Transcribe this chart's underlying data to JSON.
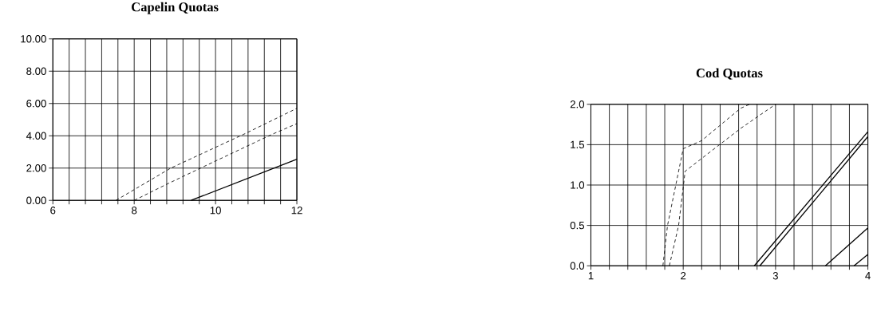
{
  "chart_data": [
    {
      "type": "line",
      "title": "Capelin Quotas",
      "relative": false,
      "grid": true,
      "legend": false,
      "marker": "none",
      "xlim": [
        6,
        12
      ],
      "ylim": [
        0,
        10
      ],
      "xticks": [
        6,
        {
          "value": 6.4,
          "label": null
        },
        {
          "value": 6.8,
          "label": null
        },
        {
          "value": 7.2,
          "label": null
        },
        {
          "value": 7.6,
          "label": null
        },
        8,
        {
          "value": 8.4,
          "label": null
        },
        {
          "value": 8.8,
          "label": null
        },
        {
          "value": 9.2,
          "label": null
        },
        {
          "value": 9.6,
          "label": null
        },
        10,
        {
          "value": 10.4,
          "label": null
        },
        {
          "value": 10.8,
          "label": null
        },
        {
          "value": 11.2,
          "label": null
        },
        {
          "value": 11.6,
          "label": null
        },
        12
      ],
      "yticks": [
        {
          "value": 0,
          "label": "0.00"
        },
        {
          "value": 2,
          "label": "2.00"
        },
        {
          "value": 4,
          "label": "4.00"
        },
        {
          "value": 6,
          "label": "6.00"
        },
        {
          "value": 8,
          "label": "8.00"
        },
        {
          "value": 10,
          "label": "10.00"
        }
      ],
      "series": [
        {
          "color": "#000000",
          "line_style": "dashed",
          "x": [
            7.55,
            8.9,
            10.7,
            12
          ],
          "values": [
            0,
            2.0,
            4.1,
            5.7
          ]
        },
        {
          "color": "#000000",
          "line_style": "dashed",
          "x": [
            8.0,
            8.8,
            9.8,
            11.4,
            12
          ],
          "values": [
            0,
            1.0,
            2.2,
            4.1,
            4.75
          ]
        },
        {
          "color": "#000000",
          "line_style": "solid",
          "x": [
            9.4,
            12
          ],
          "values": [
            0,
            2.55
          ]
        }
      ]
    },
    {
      "type": "line",
      "title": "Cod Quotas",
      "relative": false,
      "grid": true,
      "legend": false,
      "marker": "none",
      "xlim": [
        1,
        4
      ],
      "ylim": [
        0,
        2
      ],
      "xticks": [
        1,
        {
          "value": 1.2,
          "label": null
        },
        {
          "value": 1.4,
          "label": null
        },
        {
          "value": 1.6,
          "label": null
        },
        {
          "value": 1.8,
          "label": null
        },
        2,
        {
          "value": 2.2,
          "label": null
        },
        {
          "value": 2.4,
          "label": null
        },
        {
          "value": 2.6,
          "label": null
        },
        {
          "value": 2.8,
          "label": null
        },
        3,
        {
          "value": 3.2,
          "label": null
        },
        {
          "value": 3.4,
          "label": null
        },
        {
          "value": 3.6,
          "label": null
        },
        {
          "value": 3.8,
          "label": null
        },
        4
      ],
      "yticks": [
        {
          "value": 0,
          "label": "0.0"
        },
        {
          "value": 0.5,
          "label": "0.5"
        },
        {
          "value": 1,
          "label": "1.0"
        },
        {
          "value": 1.5,
          "label": "1.5"
        },
        {
          "value": 2,
          "label": "2.0"
        }
      ],
      "series": [
        {
          "color": "#000000",
          "line_style": "dashed",
          "x": [
            1.78,
            1.83,
            2.0,
            2.2,
            2.62,
            2.72
          ],
          "values": [
            0,
            0.5,
            1.45,
            1.55,
            1.95,
            2.0
          ]
        },
        {
          "color": "#000000",
          "line_style": "dashed",
          "x": [
            1.85,
            1.95,
            2.0,
            2.02,
            2.62,
            3.0
          ],
          "values": [
            0,
            0.5,
            0.97,
            1.17,
            1.7,
            2.0
          ]
        },
        {
          "color": "#000000",
          "line_style": "solid",
          "x": [
            2.77,
            4
          ],
          "values": [
            0,
            1.66
          ]
        },
        {
          "color": "#000000",
          "line_style": "solid",
          "x": [
            2.83,
            4
          ],
          "values": [
            0,
            1.6
          ]
        },
        {
          "color": "#000000",
          "line_style": "solid",
          "x": [
            3.54,
            4
          ],
          "values": [
            0,
            0.47
          ]
        },
        {
          "color": "#000000",
          "line_style": "solid",
          "x": [
            3.85,
            4
          ],
          "values": [
            0,
            0.14
          ]
        }
      ]
    }
  ]
}
